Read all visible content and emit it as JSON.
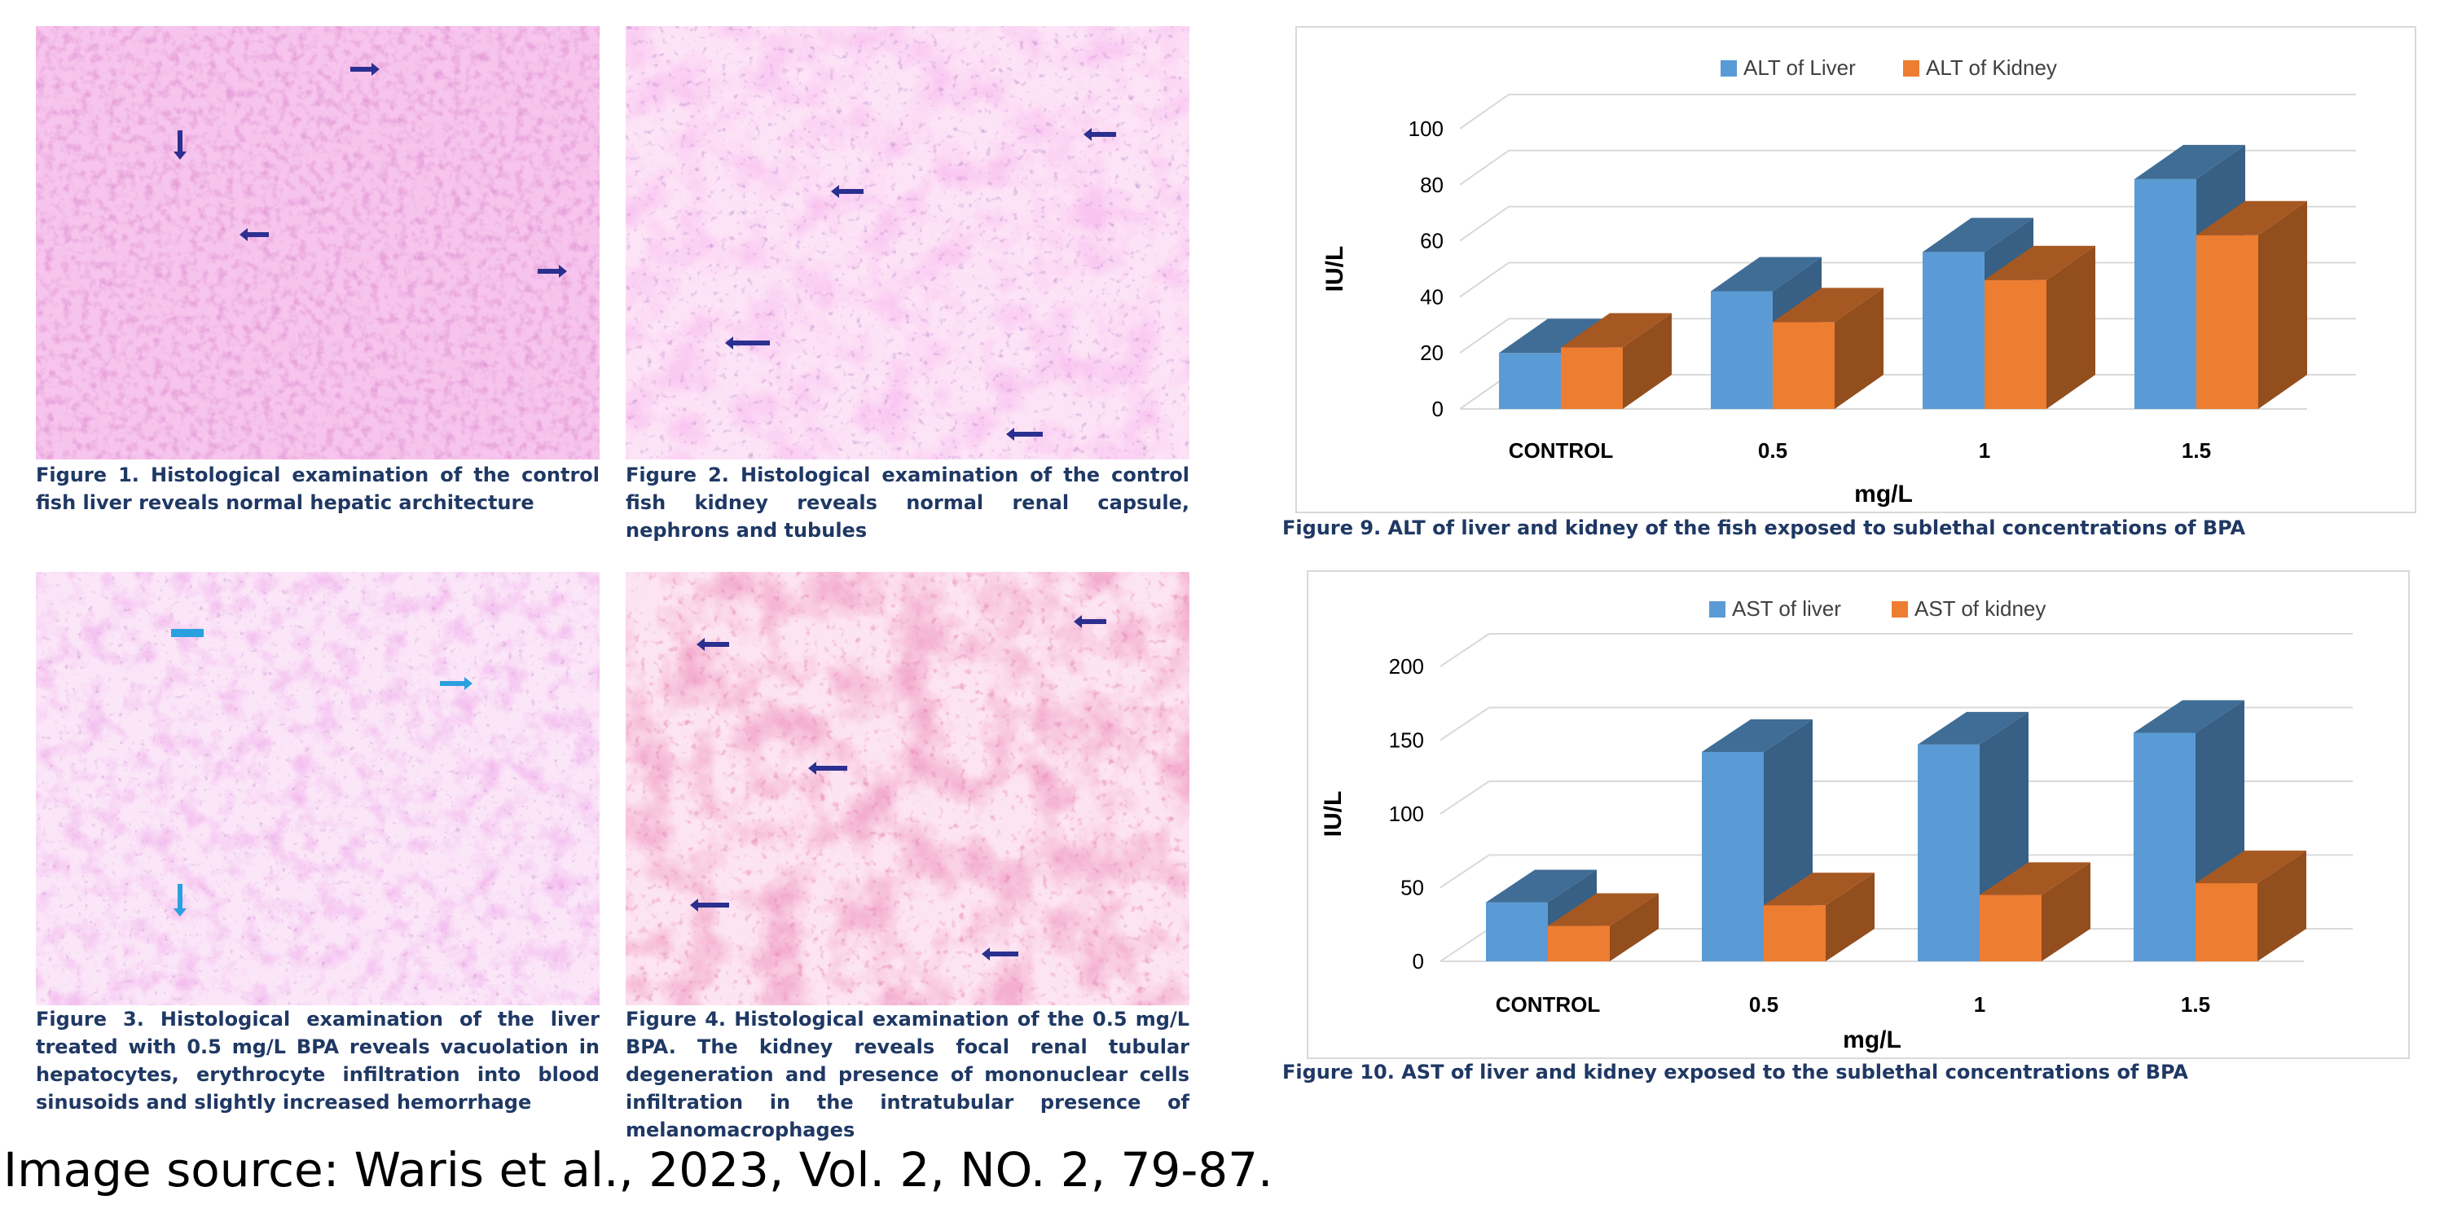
{
  "figures": {
    "fig1": {
      "caption": "Figure 1. Histological examination of the control fish liver reveals normal hepatic architecture"
    },
    "fig2": {
      "caption": "Figure 2. Histological examination of the control fish kidney reveals normal renal capsule, nephrons and tubules"
    },
    "fig3": {
      "caption": "Figure 3. Histological examination of the liver treated with 0.5 mg/L BPA reveals vacuolation in hepatocytes, erythrocyte infiltration into blood sinusoids and slightly increased hemorrhage"
    },
    "fig4": {
      "caption": "Figure 4. Histological examination of the 0.5 mg/L BPA. The kidney reveals focal renal tubular degeneration and presence of mononuclear cells infiltration in the intratubular presence of melanomacrophages"
    },
    "fig9": {
      "caption": "Figure 9. ALT of liver and kidney of the fish exposed to sublethal concentrations of BPA"
    },
    "fig10": {
      "caption": "Figure 10. AST of liver and kidney exposed to the sublethal concentrations of BPA"
    }
  },
  "source": "Image source: Waris et al., 2023, Vol. 2, NO. 2, 79-87.",
  "colors": {
    "stain_bg": "#f3b8e6",
    "stain_dark": "#b03c9a",
    "arrow": "#2b2f8f",
    "arrow_light": "#2aa0de",
    "liver": "#5b9bd5",
    "kidney": "#ed7d31"
  },
  "chart_data": [
    {
      "type": "bar",
      "title": "",
      "categories": [
        "CONTROL",
        "0.5",
        "1",
        "1.5"
      ],
      "series": [
        {
          "name": "ALT of Liver",
          "color": "#5b9bd5",
          "values": [
            20,
            42,
            56,
            82
          ]
        },
        {
          "name": "ALT of Kidney",
          "color": "#ed7d31",
          "values": [
            22,
            31,
            46,
            62
          ]
        }
      ],
      "xlabel": "mg/L",
      "ylabel": "IU/L",
      "ylim": [
        0,
        100
      ],
      "yticks": [
        0,
        20,
        40,
        60,
        80,
        100
      ],
      "legend": "top-center",
      "grid": true
    },
    {
      "type": "bar",
      "title": "",
      "categories": [
        "CONTROL",
        "0.5",
        "1",
        "1.5"
      ],
      "series": [
        {
          "name": "AST of liver",
          "color": "#5b9bd5",
          "values": [
            40,
            142,
            147,
            155
          ]
        },
        {
          "name": "AST of kidney",
          "color": "#ed7d31",
          "values": [
            24,
            38,
            45,
            53
          ]
        }
      ],
      "xlabel": "mg/L",
      "ylabel": "IU/L",
      "ylim": [
        0,
        200
      ],
      "yticks": [
        0,
        50,
        100,
        150,
        200
      ],
      "legend": "top-center",
      "grid": true
    }
  ]
}
